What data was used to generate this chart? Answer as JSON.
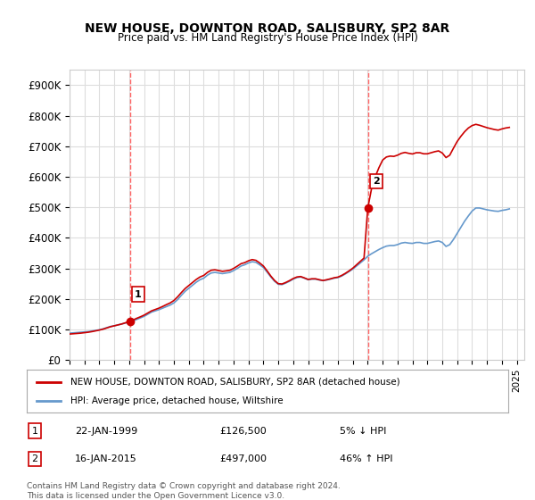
{
  "title": "NEW HOUSE, DOWNTON ROAD, SALISBURY, SP2 8AR",
  "subtitle": "Price paid vs. HM Land Registry's House Price Index (HPI)",
  "ylabel_ticks": [
    "£0",
    "£100K",
    "£200K",
    "£300K",
    "£400K",
    "£500K",
    "£600K",
    "£700K",
    "£800K",
    "£900K"
  ],
  "ytick_values": [
    0,
    100000,
    200000,
    300000,
    400000,
    500000,
    600000,
    700000,
    800000,
    900000
  ],
  "ylim": [
    0,
    950000
  ],
  "xlim_start": 1995.0,
  "xlim_end": 2025.5,
  "legend_line1": "NEW HOUSE, DOWNTON ROAD, SALISBURY, SP2 8AR (detached house)",
  "legend_line2": "HPI: Average price, detached house, Wiltshire",
  "transaction1_label": "1",
  "transaction1_date": "22-JAN-1999",
  "transaction1_price": "£126,500",
  "transaction1_hpi": "5% ↓ HPI",
  "transaction1_year": 1999.06,
  "transaction1_value": 126500,
  "transaction2_label": "2",
  "transaction2_date": "16-JAN-2015",
  "transaction2_price": "£497,000",
  "transaction2_hpi": "46% ↑ HPI",
  "transaction2_year": 2015.04,
  "transaction2_value": 497000,
  "footer": "Contains HM Land Registry data © Crown copyright and database right 2024.\nThis data is licensed under the Open Government Licence v3.0.",
  "hpi_color": "#6699cc",
  "price_color": "#cc0000",
  "vline_color": "#ff6666",
  "background_color": "#ffffff",
  "grid_color": "#dddddd",
  "hpi_data_x": [
    1995.0,
    1995.25,
    1995.5,
    1995.75,
    1996.0,
    1996.25,
    1996.5,
    1996.75,
    1997.0,
    1997.25,
    1997.5,
    1997.75,
    1998.0,
    1998.25,
    1998.5,
    1998.75,
    1999.0,
    1999.25,
    1999.5,
    1999.75,
    2000.0,
    2000.25,
    2000.5,
    2000.75,
    2001.0,
    2001.25,
    2001.5,
    2001.75,
    2002.0,
    2002.25,
    2002.5,
    2002.75,
    2003.0,
    2003.25,
    2003.5,
    2003.75,
    2004.0,
    2004.25,
    2004.5,
    2004.75,
    2005.0,
    2005.25,
    2005.5,
    2005.75,
    2006.0,
    2006.25,
    2006.5,
    2006.75,
    2007.0,
    2007.25,
    2007.5,
    2007.75,
    2008.0,
    2008.25,
    2008.5,
    2008.75,
    2009.0,
    2009.25,
    2009.5,
    2009.75,
    2010.0,
    2010.25,
    2010.5,
    2010.75,
    2011.0,
    2011.25,
    2011.5,
    2011.75,
    2012.0,
    2012.25,
    2012.5,
    2012.75,
    2013.0,
    2013.25,
    2013.5,
    2013.75,
    2014.0,
    2014.25,
    2014.5,
    2014.75,
    2015.0,
    2015.25,
    2015.5,
    2015.75,
    2016.0,
    2016.25,
    2016.5,
    2016.75,
    2017.0,
    2017.25,
    2017.5,
    2017.75,
    2018.0,
    2018.25,
    2018.5,
    2018.75,
    2019.0,
    2019.25,
    2019.5,
    2019.75,
    2020.0,
    2020.25,
    2020.5,
    2020.75,
    2021.0,
    2021.25,
    2021.5,
    2021.75,
    2022.0,
    2022.25,
    2022.5,
    2022.75,
    2023.0,
    2023.25,
    2023.5,
    2023.75,
    2024.0,
    2024.25,
    2024.5
  ],
  "hpi_data_y": [
    88000,
    89000,
    90000,
    91000,
    92000,
    93000,
    95000,
    97000,
    99000,
    102000,
    106000,
    110000,
    112000,
    115000,
    118000,
    121000,
    124000,
    128000,
    133000,
    138000,
    143000,
    150000,
    157000,
    161000,
    165000,
    170000,
    175000,
    180000,
    187000,
    198000,
    212000,
    225000,
    235000,
    245000,
    255000,
    263000,
    268000,
    278000,
    285000,
    287000,
    285000,
    283000,
    285000,
    287000,
    293000,
    300000,
    308000,
    312000,
    318000,
    322000,
    320000,
    312000,
    303000,
    288000,
    272000,
    258000,
    248000,
    247000,
    252000,
    258000,
    265000,
    270000,
    272000,
    268000,
    263000,
    265000,
    265000,
    262000,
    260000,
    262000,
    265000,
    268000,
    270000,
    275000,
    282000,
    290000,
    298000,
    308000,
    318000,
    328000,
    340000,
    348000,
    355000,
    362000,
    368000,
    373000,
    375000,
    375000,
    378000,
    383000,
    385000,
    383000,
    382000,
    385000,
    385000,
    382000,
    382000,
    385000,
    388000,
    390000,
    385000,
    372000,
    378000,
    395000,
    415000,
    435000,
    455000,
    472000,
    488000,
    498000,
    498000,
    495000,
    492000,
    490000,
    488000,
    487000,
    490000,
    492000,
    495000
  ],
  "price_data_x": [
    1995.0,
    1995.25,
    1995.5,
    1995.75,
    1996.0,
    1996.25,
    1996.5,
    1996.75,
    1997.0,
    1997.25,
    1997.5,
    1997.75,
    1998.0,
    1998.25,
    1998.5,
    1998.75,
    1999.0,
    1999.25,
    1999.5,
    1999.75,
    2000.0,
    2000.25,
    2000.5,
    2000.75,
    2001.0,
    2001.25,
    2001.5,
    2001.75,
    2002.0,
    2002.25,
    2002.5,
    2002.75,
    2003.0,
    2003.25,
    2003.5,
    2003.75,
    2004.0,
    2004.25,
    2004.5,
    2004.75,
    2005.0,
    2005.25,
    2005.5,
    2005.75,
    2006.0,
    2006.25,
    2006.5,
    2006.75,
    2007.0,
    2007.25,
    2007.5,
    2007.75,
    2008.0,
    2008.25,
    2008.5,
    2008.75,
    2009.0,
    2009.25,
    2009.5,
    2009.75,
    2010.0,
    2010.25,
    2010.5,
    2010.75,
    2011.0,
    2011.25,
    2011.5,
    2011.75,
    2012.0,
    2012.25,
    2012.5,
    2012.75,
    2013.0,
    2013.25,
    2013.5,
    2013.75,
    2014.0,
    2014.25,
    2014.5,
    2014.75,
    2015.0,
    2015.25,
    2015.5,
    2015.75,
    2016.0,
    2016.25,
    2016.5,
    2016.75,
    2017.0,
    2017.25,
    2017.5,
    2017.75,
    2018.0,
    2018.25,
    2018.5,
    2018.75,
    2019.0,
    2019.25,
    2019.5,
    2019.75,
    2020.0,
    2020.25,
    2020.5,
    2020.75,
    2021.0,
    2021.25,
    2021.5,
    2021.75,
    2022.0,
    2022.25,
    2022.5,
    2022.75,
    2023.0,
    2023.25,
    2023.5,
    2023.75,
    2024.0,
    2024.25,
    2024.5
  ],
  "price_data_y": [
    85000,
    86000,
    87000,
    88000,
    89500,
    91000,
    93000,
    95500,
    98000,
    101000,
    105000,
    109000,
    112000,
    115000,
    118000,
    122000,
    126500,
    131000,
    136500,
    141500,
    147000,
    154000,
    161000,
    165500,
    170000,
    175500,
    181500,
    187000,
    195000,
    207000,
    221000,
    234000,
    244000,
    254000,
    264000,
    272000,
    277000,
    287000,
    294000,
    295500,
    293000,
    290500,
    292000,
    294000,
    300000,
    307500,
    315500,
    319000,
    325000,
    329000,
    326500,
    318000,
    308000,
    292000,
    275000,
    260500,
    250000,
    249000,
    254000,
    260000,
    267000,
    272000,
    273500,
    269000,
    264000,
    266000,
    266000,
    263000,
    260500,
    263000,
    266000,
    269500,
    271500,
    277000,
    284000,
    292000,
    301000,
    312000,
    323000,
    334000,
    497000,
    560000,
    600000,
    630000,
    655000,
    665000,
    668000,
    667000,
    671000,
    677000,
    680000,
    677000,
    675000,
    679000,
    679000,
    675500,
    675500,
    679000,
    682500,
    685000,
    678000,
    663000,
    671000,
    694000,
    716000,
    733000,
    748000,
    760000,
    768000,
    772000,
    769000,
    765000,
    761000,
    758000,
    755000,
    753000,
    757000,
    760000,
    762000
  ]
}
